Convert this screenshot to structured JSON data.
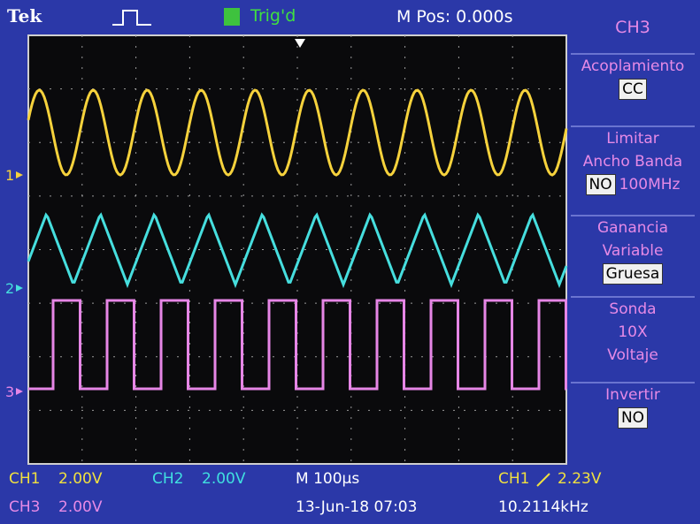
{
  "header": {
    "brand": "Tek",
    "trigger_status": "Trig'd",
    "horizontal_position": "M Pos: 0.000s"
  },
  "channel_markers": [
    "1",
    "2",
    "3"
  ],
  "menu": {
    "title": "CH3",
    "items": [
      {
        "label_lines": [
          "Acoplamiento"
        ],
        "value": "CC"
      },
      {
        "label_lines": [
          "Limitar",
          "Ancho Banda"
        ],
        "value": "NO",
        "value_suffix": "100MHz"
      },
      {
        "label_lines": [
          "Ganancia",
          "Variable"
        ],
        "value": "Gruesa"
      },
      {
        "label_lines": [
          "Sonda",
          "10X",
          "Voltaje"
        ]
      },
      {
        "label_lines": [
          "Invertir"
        ],
        "value": "NO"
      }
    ]
  },
  "footer": {
    "ch1": {
      "channel": "CH1",
      "scale": "2.00V"
    },
    "ch2": {
      "channel": "CH2",
      "scale": "2.00V"
    },
    "timebase": "M 100µs",
    "trigger": {
      "channel": "CH1",
      "level": "2.23V"
    },
    "ch3": {
      "channel": "CH3",
      "scale": "2.00V"
    },
    "datetime": "13-Jun-18 07:03",
    "frequency": "10.2114kHz"
  }
}
